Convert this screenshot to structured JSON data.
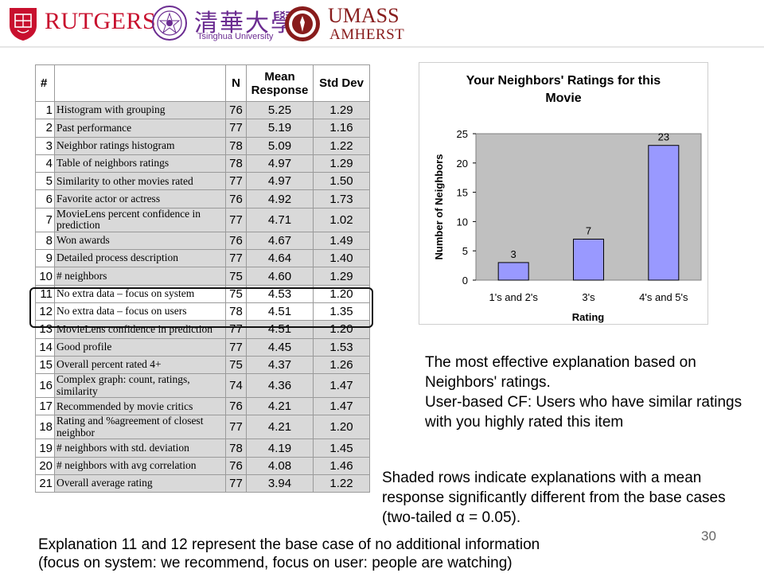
{
  "header": {
    "rutgers": "RUTGERS",
    "tsinghua_cn": "清華大學",
    "tsinghua_en": "Tsinghua University",
    "umass": "UMASS",
    "amherst": "AMHERST"
  },
  "table": {
    "headers": {
      "num": "#",
      "n": "N",
      "mean": "Mean Response",
      "sd": "Std Dev"
    },
    "rows": [
      {
        "num": "1",
        "exp": "Histogram with grouping",
        "n": "76",
        "mean": "5.25",
        "sd": "1.29"
      },
      {
        "num": "2",
        "exp": "Past performance",
        "n": "77",
        "mean": "5.19",
        "sd": "1.16"
      },
      {
        "num": "3",
        "exp": "Neighbor ratings histogram",
        "n": "78",
        "mean": "5.09",
        "sd": "1.22"
      },
      {
        "num": "4",
        "exp": "Table of neighbors ratings",
        "n": "78",
        "mean": "4.97",
        "sd": "1.29"
      },
      {
        "num": "5",
        "exp": "Similarity to other movies rated",
        "n": "77",
        "mean": "4.97",
        "sd": "1.50"
      },
      {
        "num": "6",
        "exp": "Favorite actor or actress",
        "n": "76",
        "mean": "4.92",
        "sd": "1.73"
      },
      {
        "num": "7",
        "exp": "MovieLens percent confidence in prediction",
        "n": "77",
        "mean": "4.71",
        "sd": "1.02"
      },
      {
        "num": "8",
        "exp": "Won awards",
        "n": "76",
        "mean": "4.67",
        "sd": "1.49"
      },
      {
        "num": "9",
        "exp": "Detailed process description",
        "n": "77",
        "mean": "4.64",
        "sd": "1.40"
      },
      {
        "num": "10",
        "exp": "# neighbors",
        "n": "75",
        "mean": "4.60",
        "sd": "1.29"
      },
      {
        "num": "11",
        "exp": "No extra data – focus on system",
        "n": "75",
        "mean": "4.53",
        "sd": "1.20"
      },
      {
        "num": "12",
        "exp": "No extra data – focus on users",
        "n": "78",
        "mean": "4.51",
        "sd": "1.35"
      },
      {
        "num": "13",
        "exp": "MovieLens confidence in prediction",
        "n": "77",
        "mean": "4.51",
        "sd": "1.20"
      },
      {
        "num": "14",
        "exp": "Good profile",
        "n": "77",
        "mean": "4.45",
        "sd": "1.53"
      },
      {
        "num": "15",
        "exp": "Overall percent rated 4+",
        "n": "75",
        "mean": "4.37",
        "sd": "1.26"
      },
      {
        "num": "16",
        "exp": "Complex graph: count, ratings, similarity",
        "n": "74",
        "mean": "4.36",
        "sd": "1.47"
      },
      {
        "num": "17",
        "exp": "Recommended by movie critics",
        "n": "76",
        "mean": "4.21",
        "sd": "1.47"
      },
      {
        "num": "18",
        "exp": "Rating and %agreement of closest neighbor",
        "n": "77",
        "mean": "4.21",
        "sd": "1.20"
      },
      {
        "num": "19",
        "exp": "# neighbors with std. deviation",
        "n": "78",
        "mean": "4.19",
        "sd": "1.45"
      },
      {
        "num": "20",
        "exp": "# neighbors with avg correlation",
        "n": "76",
        "mean": "4.08",
        "sd": "1.46"
      },
      {
        "num": "21",
        "exp": "Overall average rating",
        "n": "77",
        "mean": "3.94",
        "sd": "1.22"
      }
    ]
  },
  "chart_data": {
    "type": "bar",
    "title": "Your Neighbors' Ratings for this Movie",
    "title_lines": [
      "Your Neighbors' Ratings for this",
      "Movie"
    ],
    "categories": [
      "1's and 2's",
      "3's",
      "4's and 5's"
    ],
    "values": [
      3,
      7,
      23
    ],
    "xlabel": "Rating",
    "ylabel": "Number of Neighbors",
    "ylim": [
      0,
      25
    ],
    "yticks": [
      0,
      5,
      10,
      15,
      20,
      25
    ],
    "grid": false,
    "legend": "none",
    "bar_color": "#9999ff",
    "plot_background": "#c0c0c0"
  },
  "notes": {
    "effective": "The most effective explanation based on Neighbors' ratings.",
    "usercf": "User-based CF: Users who have similar ratings with you highly rated this item",
    "shaded": "Shaded rows indicate explanations with a mean response significantly different from the base cases (two-tailed α = 0.05).",
    "base_line1": "Explanation 11 and 12 represent the base case of no additional information",
    "base_line2": "(focus on system: we recommend, focus on user: people are watching)"
  },
  "page_number": "30"
}
